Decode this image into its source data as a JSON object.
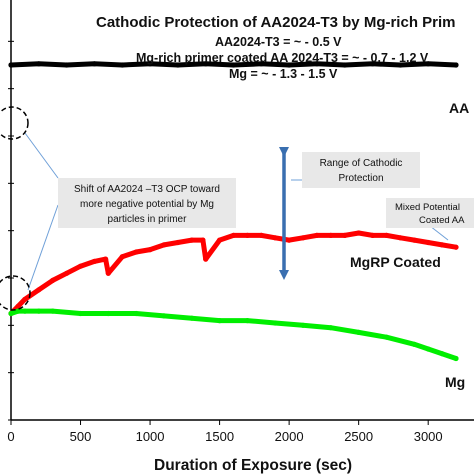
{
  "chart_data": {
    "type": "line",
    "title": "Cathodic Protection of AA2024-T3  by Mg-rich Prim",
    "subtitle_lines": [
      "AA2024-T3 = ~ - 0.5 V",
      "Mg-rich primer coated AA 2024-T3 = ~ - 0.7 - 1.2 V",
      "Mg = ~ - 1.3 - 1.5 V"
    ],
    "xlabel": "Duration of Exposure (sec)",
    "ylabel": "",
    "xlim": [
      0,
      3200
    ],
    "ylim": [
      0,
      18
    ],
    "xticks": [
      0,
      500,
      1000,
      1500,
      2000,
      2500,
      3000
    ],
    "yticks": [
      0,
      2,
      4,
      6,
      8,
      10,
      12,
      14,
      16,
      18
    ],
    "grid": false,
    "series": [
      {
        "name": "AA",
        "color": "#000000",
        "x": [
          0,
          200,
          400,
          600,
          800,
          1000,
          1200,
          1400,
          1600,
          1800,
          2000,
          2200,
          2400,
          2600,
          2800,
          3000,
          3200
        ],
        "y": [
          15.0,
          15.05,
          15.0,
          15.05,
          15.0,
          15.05,
          15.0,
          15.05,
          15.0,
          15.05,
          15.0,
          15.05,
          15.0,
          15.05,
          15.0,
          15.05,
          15.0
        ]
      },
      {
        "name": "MgRP Coated",
        "color": "#ff0000",
        "x": [
          0,
          50,
          100,
          200,
          300,
          400,
          500,
          600,
          680,
          700,
          800,
          900,
          1000,
          1100,
          1200,
          1300,
          1380,
          1400,
          1500,
          1600,
          1700,
          1800,
          1900,
          2000,
          2100,
          2200,
          2300,
          2400,
          2500,
          2600,
          2700,
          2800,
          2900,
          3000,
          3100,
          3200
        ],
        "y": [
          4.5,
          4.8,
          5.1,
          5.5,
          5.9,
          6.2,
          6.5,
          6.7,
          6.8,
          6.2,
          6.9,
          7.1,
          7.2,
          7.4,
          7.5,
          7.6,
          7.6,
          6.8,
          7.6,
          7.8,
          7.8,
          7.8,
          7.7,
          7.6,
          7.7,
          7.8,
          7.8,
          7.8,
          7.9,
          7.8,
          7.8,
          7.7,
          7.6,
          7.5,
          7.4,
          7.3
        ]
      },
      {
        "name": "Mg",
        "color": "#00ee00",
        "x": [
          0,
          50,
          100,
          200,
          300,
          500,
          700,
          900,
          1100,
          1300,
          1500,
          1700,
          1900,
          2100,
          2300,
          2500,
          2700,
          2900,
          3000,
          3100,
          3200
        ],
        "y": [
          4.5,
          4.6,
          4.6,
          4.6,
          4.6,
          4.5,
          4.5,
          4.5,
          4.4,
          4.3,
          4.2,
          4.2,
          4.1,
          4.0,
          3.9,
          3.7,
          3.5,
          3.2,
          3.0,
          2.8,
          2.6
        ]
      }
    ],
    "labels": {
      "aa_series": "AA",
      "mgrp_series": "MgRP Coated",
      "mg_series": "Mg",
      "range_box": [
        "Range of Cathodic",
        "Protection"
      ],
      "shift_note": [
        "Shift of AA2024 –T3  OCP toward",
        "more negative potential by Mg",
        "particles in primer"
      ],
      "mixed_note": [
        "Mixed Potential",
        "Coated  AA"
      ]
    },
    "colors": {
      "arrow": "#3a6fb0",
      "callout_box": "#e8e8e8",
      "callout_line": "#6fa0d8"
    }
  }
}
